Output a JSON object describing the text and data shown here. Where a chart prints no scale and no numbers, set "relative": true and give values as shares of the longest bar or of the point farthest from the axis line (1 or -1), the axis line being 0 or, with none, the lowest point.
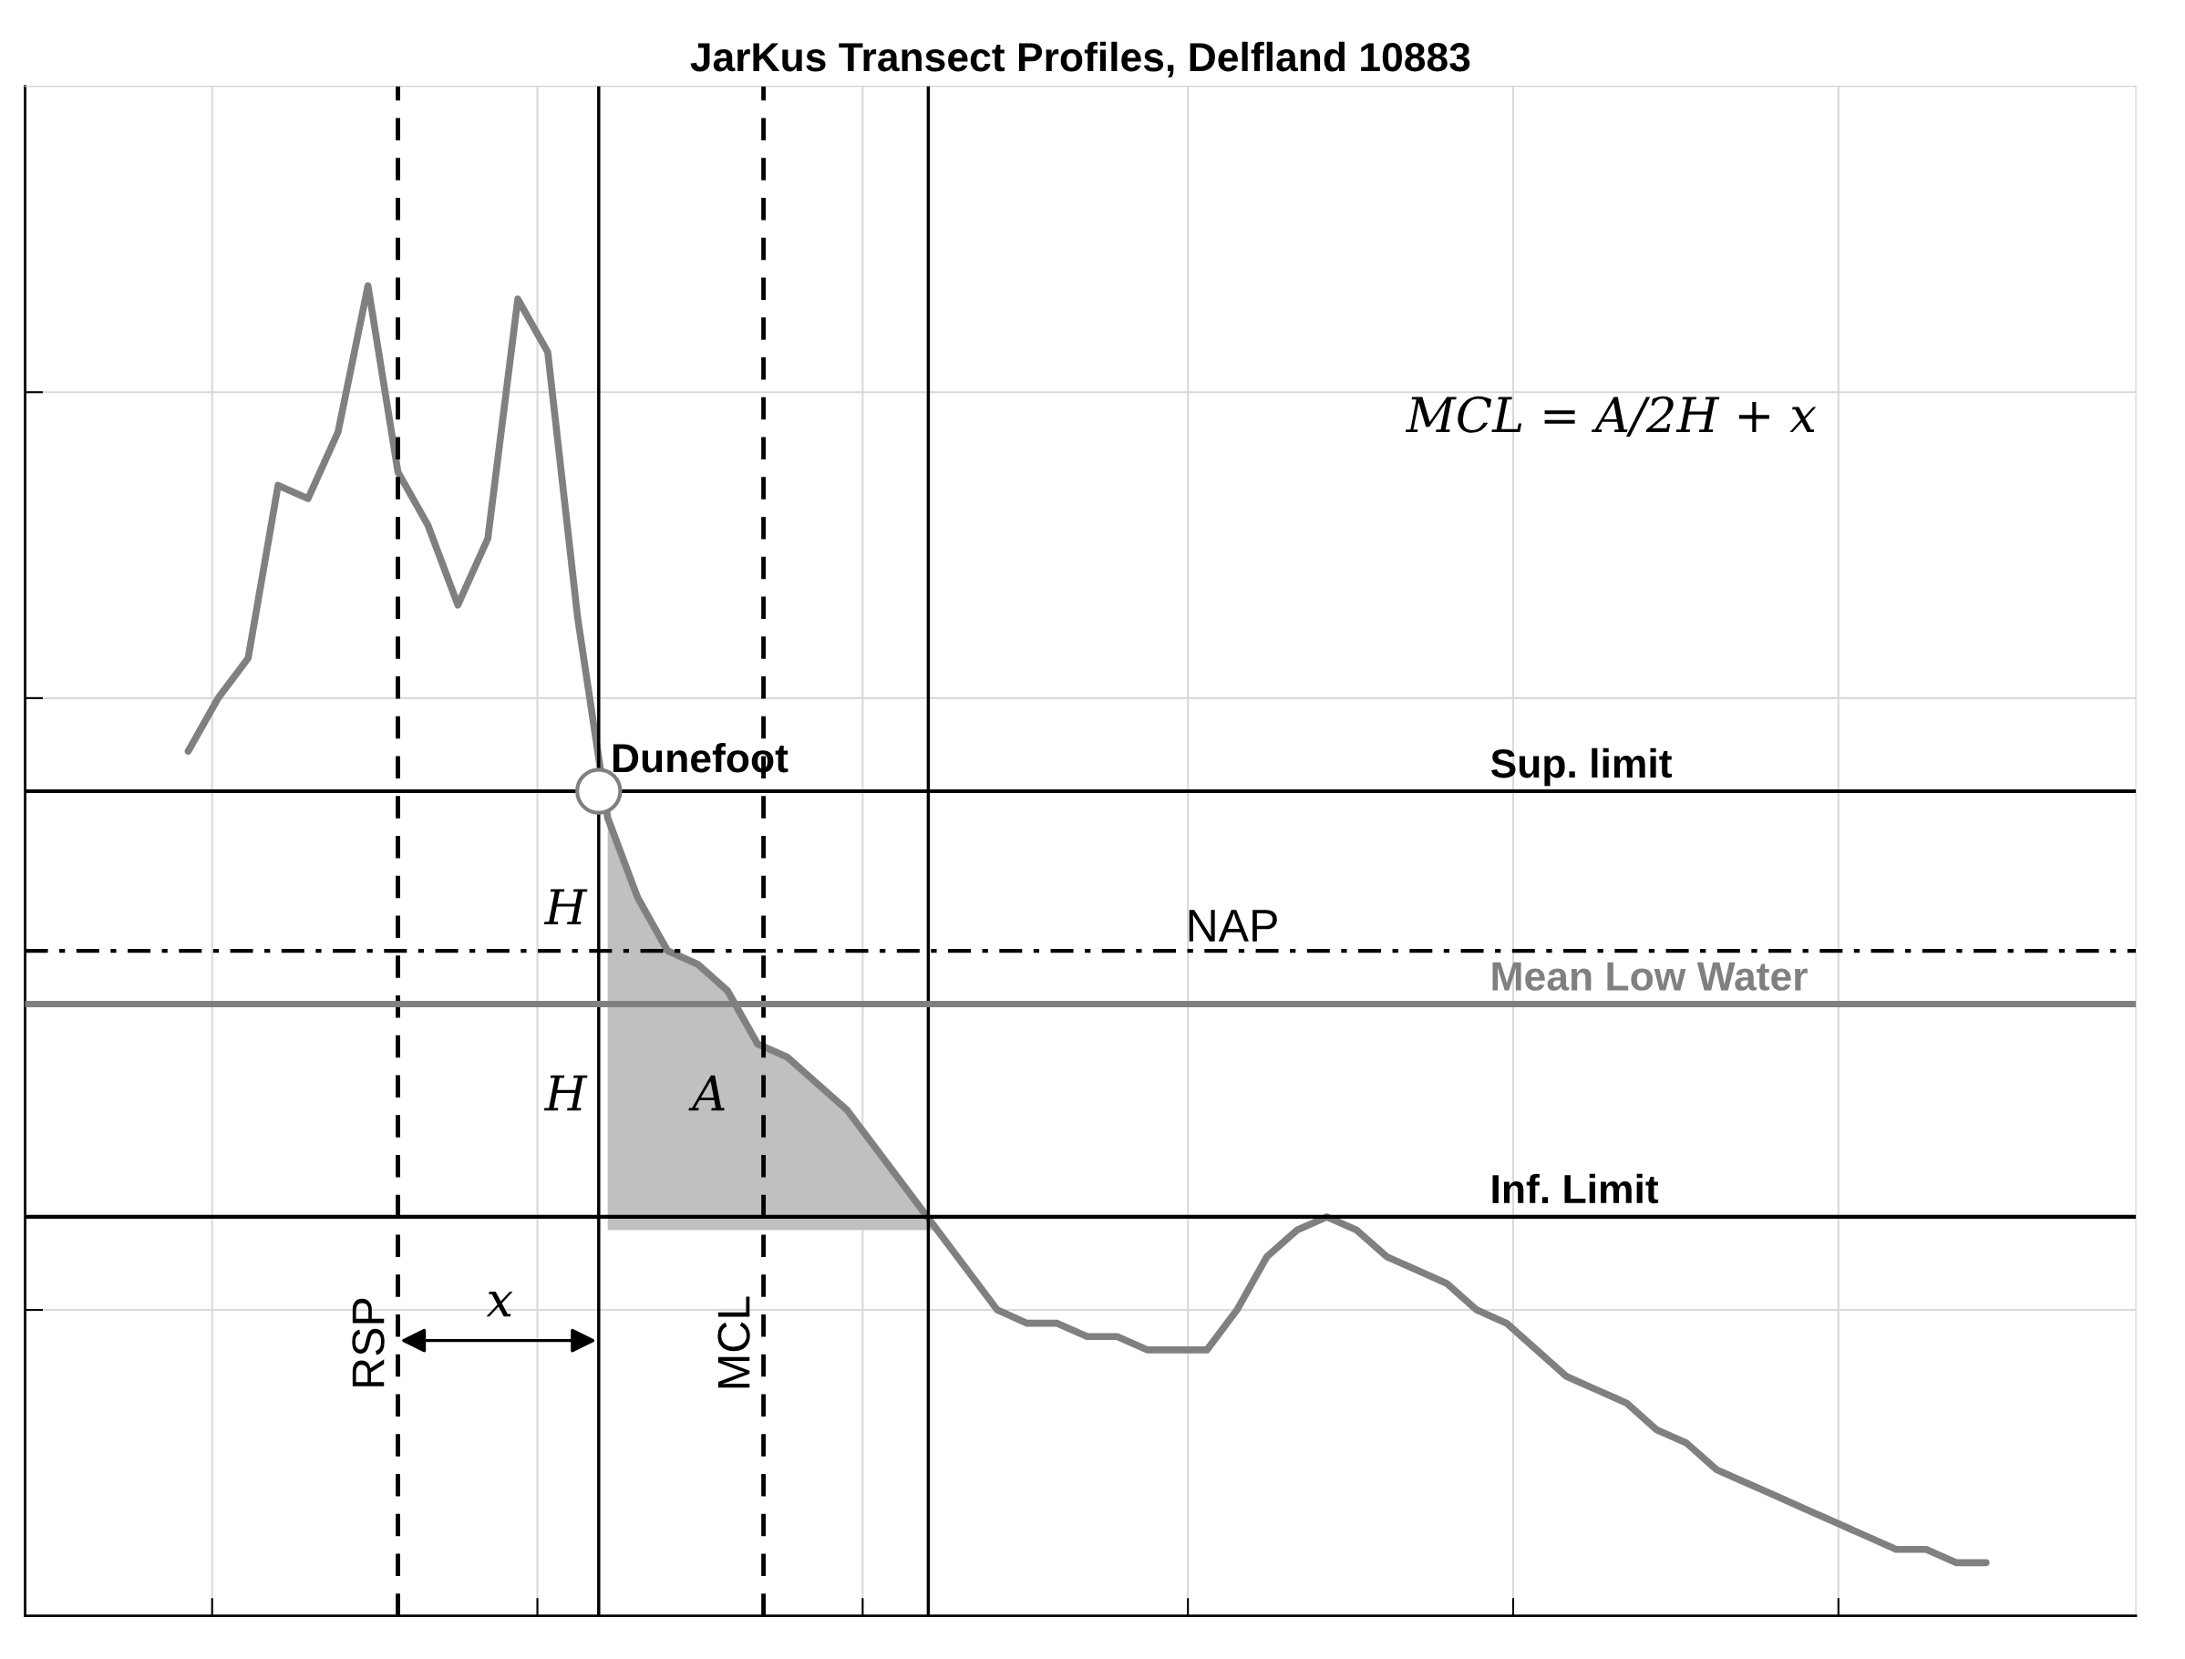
{
  "chart_data": {
    "type": "line",
    "title": "JarKus Transect Profiles, Delfland 10883",
    "relative": true,
    "grid": true,
    "tick_labels": false,
    "marker": "none",
    "line_style": "solid",
    "categories": [
      null,
      null,
      null,
      null,
      null,
      null,
      null,
      null,
      null,
      null,
      null,
      null,
      null,
      null,
      null,
      null,
      null,
      null,
      null,
      null,
      null,
      null,
      null,
      null,
      null,
      null,
      null,
      null,
      null,
      null,
      null,
      null,
      null,
      null,
      null,
      null,
      null,
      null,
      null,
      null,
      null,
      null,
      null,
      null,
      null,
      null,
      null,
      null,
      null,
      null,
      null,
      null,
      null,
      null,
      null,
      null,
      null,
      null,
      null,
      null,
      null
    ],
    "series": [
      {
        "color": "#808080",
        "values": [
          0.65,
          0.69,
          0.72,
          0.85,
          0.84,
          0.89,
          1.0,
          0.86,
          0.82,
          0.76,
          0.81,
          0.99,
          0.95,
          0.75,
          0.6,
          0.54,
          0.5,
          0.49,
          0.47,
          0.43,
          0.42,
          0.4,
          0.38,
          0.35,
          0.32,
          0.29,
          0.26,
          0.23,
          0.22,
          0.22,
          0.21,
          0.21,
          0.2,
          0.2,
          0.2,
          0.23,
          0.27,
          0.29,
          0.3,
          0.29,
          0.27,
          0.26,
          0.25,
          0.23,
          0.22,
          0.2,
          0.18,
          0.17,
          0.16,
          0.14,
          0.13,
          0.11,
          0.1,
          0.09,
          0.08,
          0.07,
          0.06,
          0.05,
          0.05,
          0.04,
          0.04
        ]
      },
      {
        "type": "area",
        "color": "#c0c0c0",
        "values": [
          null,
          null,
          null,
          null,
          null,
          null,
          null,
          null,
          null,
          null,
          null,
          null,
          null,
          null,
          0.6,
          0.54,
          0.5,
          0.49,
          0.47,
          0.43,
          0.42,
          0.4,
          0.38,
          0.35,
          0.32,
          0.29,
          null,
          null,
          null,
          null,
          null,
          null,
          null,
          null,
          null,
          null,
          null,
          null,
          null,
          null,
          null,
          null,
          null,
          null,
          null,
          null,
          null,
          null,
          null,
          null,
          null,
          null,
          null,
          null,
          null,
          null,
          null,
          null,
          null,
          null,
          null
        ]
      }
    ],
    "ref_lines": [
      {
        "axis": "y",
        "value": 0.62,
        "label": "Sup. limit",
        "color": "#000000",
        "line_style": "solid"
      },
      {
        "axis": "y",
        "value": 0.5,
        "label": "NAP",
        "color": "#000000",
        "line_style": "dashdot"
      },
      {
        "axis": "y",
        "value": 0.46,
        "label": "Mean Low Water",
        "color": "#808080",
        "line_style": "solid"
      },
      {
        "axis": "y",
        "value": 0.3,
        "label": "Inf. Limit",
        "color": "#000000",
        "line_style": "solid"
      }
    ],
    "annotations": [
      "Dunefoot",
      "H",
      "H",
      "A",
      "x",
      "RSP",
      "MCL",
      "MCL = A/2H + x"
    ]
  }
}
